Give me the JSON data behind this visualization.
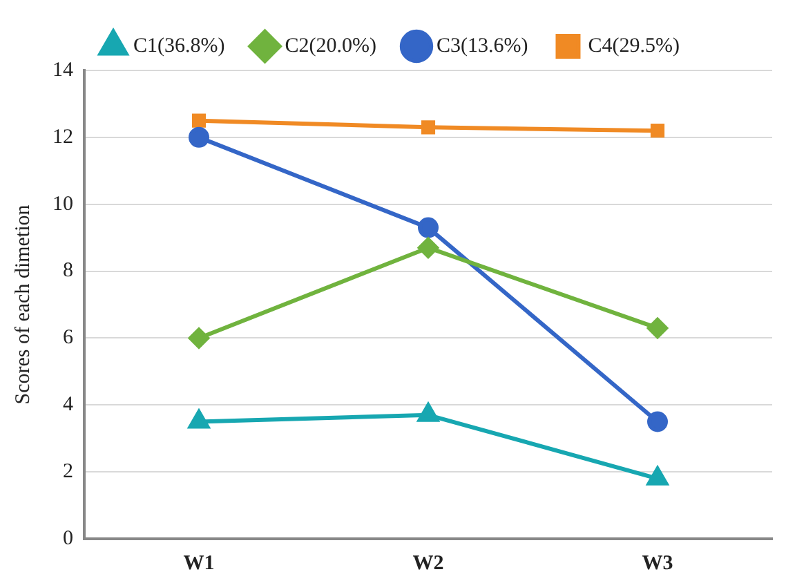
{
  "chart_data": {
    "type": "line",
    "ylabel": "Scores of each dimetion",
    "categories": [
      "W1",
      "W2",
      "W3"
    ],
    "series": [
      {
        "name": "C1(36.8%)",
        "color": "#17a7b1",
        "marker": "triangle",
        "values": [
          3.5,
          3.7,
          1.8
        ]
      },
      {
        "name": "C2(20.0%)",
        "color": "#70b33e",
        "marker": "diamond",
        "values": [
          6.0,
          8.7,
          6.3
        ]
      },
      {
        "name": "C3(13.6%)",
        "color": "#3466c7",
        "marker": "circle",
        "values": [
          12.0,
          9.3,
          3.5
        ]
      },
      {
        "name": "C4(29.5%)",
        "color": "#f08a24",
        "marker": "square",
        "values": [
          12.5,
          12.3,
          12.2
        ]
      }
    ],
    "ylim": [
      0,
      14
    ],
    "yticks": [
      0,
      2,
      4,
      6,
      8,
      10,
      12,
      14
    ],
    "grid": "y",
    "legend": "top"
  }
}
